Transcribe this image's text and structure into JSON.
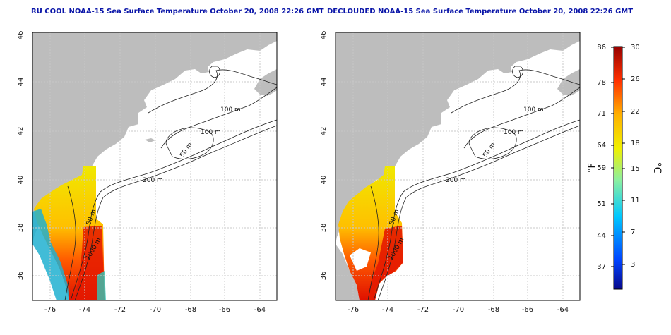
{
  "maps": [
    {
      "title": "RU COOL NOAA-15 Sea Surface Temperature October 20, 2008 22:26 GMT",
      "x_ticks": [
        "-76",
        "-74",
        "-72",
        "-70",
        "-68",
        "-66",
        "-64"
      ],
      "y_ticks": [
        "36",
        "38",
        "40",
        "42",
        "44",
        "46"
      ],
      "contour_labels": [
        "100 m",
        "100 m",
        "50 m",
        "200 m",
        "50 m",
        "1000 m"
      ]
    },
    {
      "title": "DECLOUDED NOAA-15 Sea Surface Temperature October 20, 2008 22:26 GMT",
      "x_ticks": [
        "-76",
        "-74",
        "-72",
        "-70",
        "-68",
        "-66",
        "-64"
      ],
      "y_ticks": [
        "36",
        "38",
        "40",
        "42",
        "44",
        "46"
      ],
      "contour_labels": [
        "100 m",
        "100 m",
        "50 m",
        "200 m",
        "50 m",
        "1000 m"
      ]
    }
  ],
  "colorbar": {
    "f_unit": "°F",
    "c_unit": "°C",
    "f_ticks": [
      "86",
      "78",
      "71",
      "64",
      "59",
      "51",
      "44",
      "37"
    ],
    "c_ticks": [
      "30",
      "26",
      "22",
      "18",
      "15",
      "11",
      "7",
      "3"
    ],
    "colors": [
      "#08088a",
      "#0044ff",
      "#00c8ff",
      "#8cf0a0",
      "#f0f000",
      "#ffb000",
      "#ff3000",
      "#960000"
    ]
  },
  "colors": {
    "land": "#bdbdbd",
    "title": "#0a15a8",
    "grid": "#c8c8c8"
  }
}
